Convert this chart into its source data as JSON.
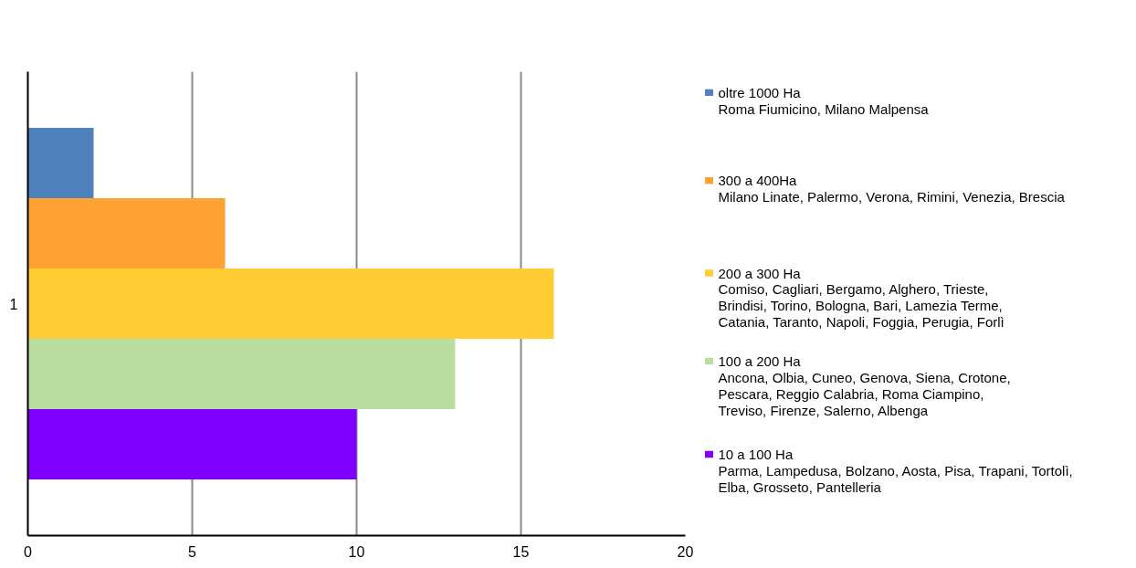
{
  "chart_data": {
    "type": "bar",
    "orientation": "horizontal",
    "categories": [
      "1"
    ],
    "series": [
      {
        "name": "oltre 1000 Ha\nRoma Fiumicino, Milano Malpensa",
        "color": "#4f81bd",
        "values": [
          2
        ]
      },
      {
        "name": "300 a 400Ha\nMilano Linate, Palermo, Verona, Rimini, Venezia, Brescia",
        "color": "#ffa233",
        "values": [
          6
        ]
      },
      {
        "name": "200 a 300 Ha\nComiso, Cagliari, Bergamo, Alghero, Trieste,\nBrindisi, Torino, Bologna, Bari, Lamezia Terme,\nCatania, Taranto, Napoli, Foggia, Perugia, Forlì",
        "color": "#ffcc33",
        "values": [
          16
        ]
      },
      {
        "name": "100 a 200 Ha\nAncona, Olbia, Cuneo, Genova, Siena, Crotone,\nPescara, Reggio Calabria, Roma Ciampino,\nTreviso, Firenze, Salerno, Albenga",
        "color": "#b8dea0",
        "values": [
          13
        ]
      },
      {
        "name": "10 a 100 Ha\nParma, Lampedusa, Bolzano, Aosta, Pisa, Trapani, Tortolì,\nElba, Grosseto, Pantelleria",
        "color": "#8000ff",
        "values": [
          10
        ]
      }
    ],
    "xlim": [
      0,
      20
    ],
    "xticks": [
      0,
      5,
      10,
      15,
      20
    ],
    "grid": "x",
    "legend": "right"
  }
}
